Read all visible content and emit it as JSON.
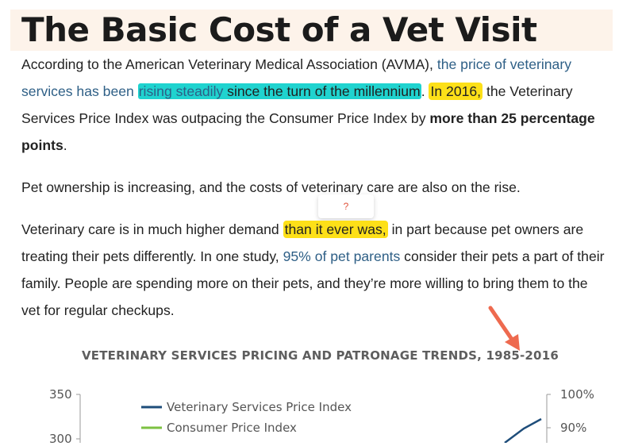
{
  "article": {
    "title": "The Basic Cost of a Vet Visit",
    "p1": {
      "t1": "According to the American Veterinary Medical Association (AVMA), ",
      "link1": "the price of veterinary services has been ",
      "link_hl": "rising steadily",
      "hl_cont": " since the turn of the millennium",
      "t2": ".",
      "hl2": "In 2016,",
      "t3": " the Veterinary Services Price Index was outpacing the Consumer Price Index by ",
      "bold": "more than 25 percentage points",
      "t4": "."
    },
    "p2": "Pet ownership is increasing, and the costs of veterinary care are also on the rise.",
    "p3": {
      "t1": "Veterinary care is in much higher demand ",
      "hl": "than it ever was,",
      "t2": " in part because pet owners are treating their pets differently. In one study, ",
      "link": "95% of pet parents",
      "t3": " consider their pets a part of their family. People are spending more on their pets, and they’re more willing to bring them to the vet for regular checkups."
    },
    "popup_icon": "?"
  },
  "chart_data": {
    "type": "line",
    "title": "VETERINARY SERVICES PRICING AND PATRONAGE TRENDS, 1985-2016",
    "left_axis_ticks": [
      "350",
      "300"
    ],
    "right_axis_ticks": [
      "100%",
      "90%"
    ],
    "series": [
      {
        "name": "Veterinary Services Price Index",
        "color": "#1e4d7a"
      },
      {
        "name": "Consumer Price Index",
        "color": "#7cc142"
      }
    ],
    "annotation": "arrow pointing at 2016 in title",
    "arrow_color": "#ee6a4f"
  }
}
